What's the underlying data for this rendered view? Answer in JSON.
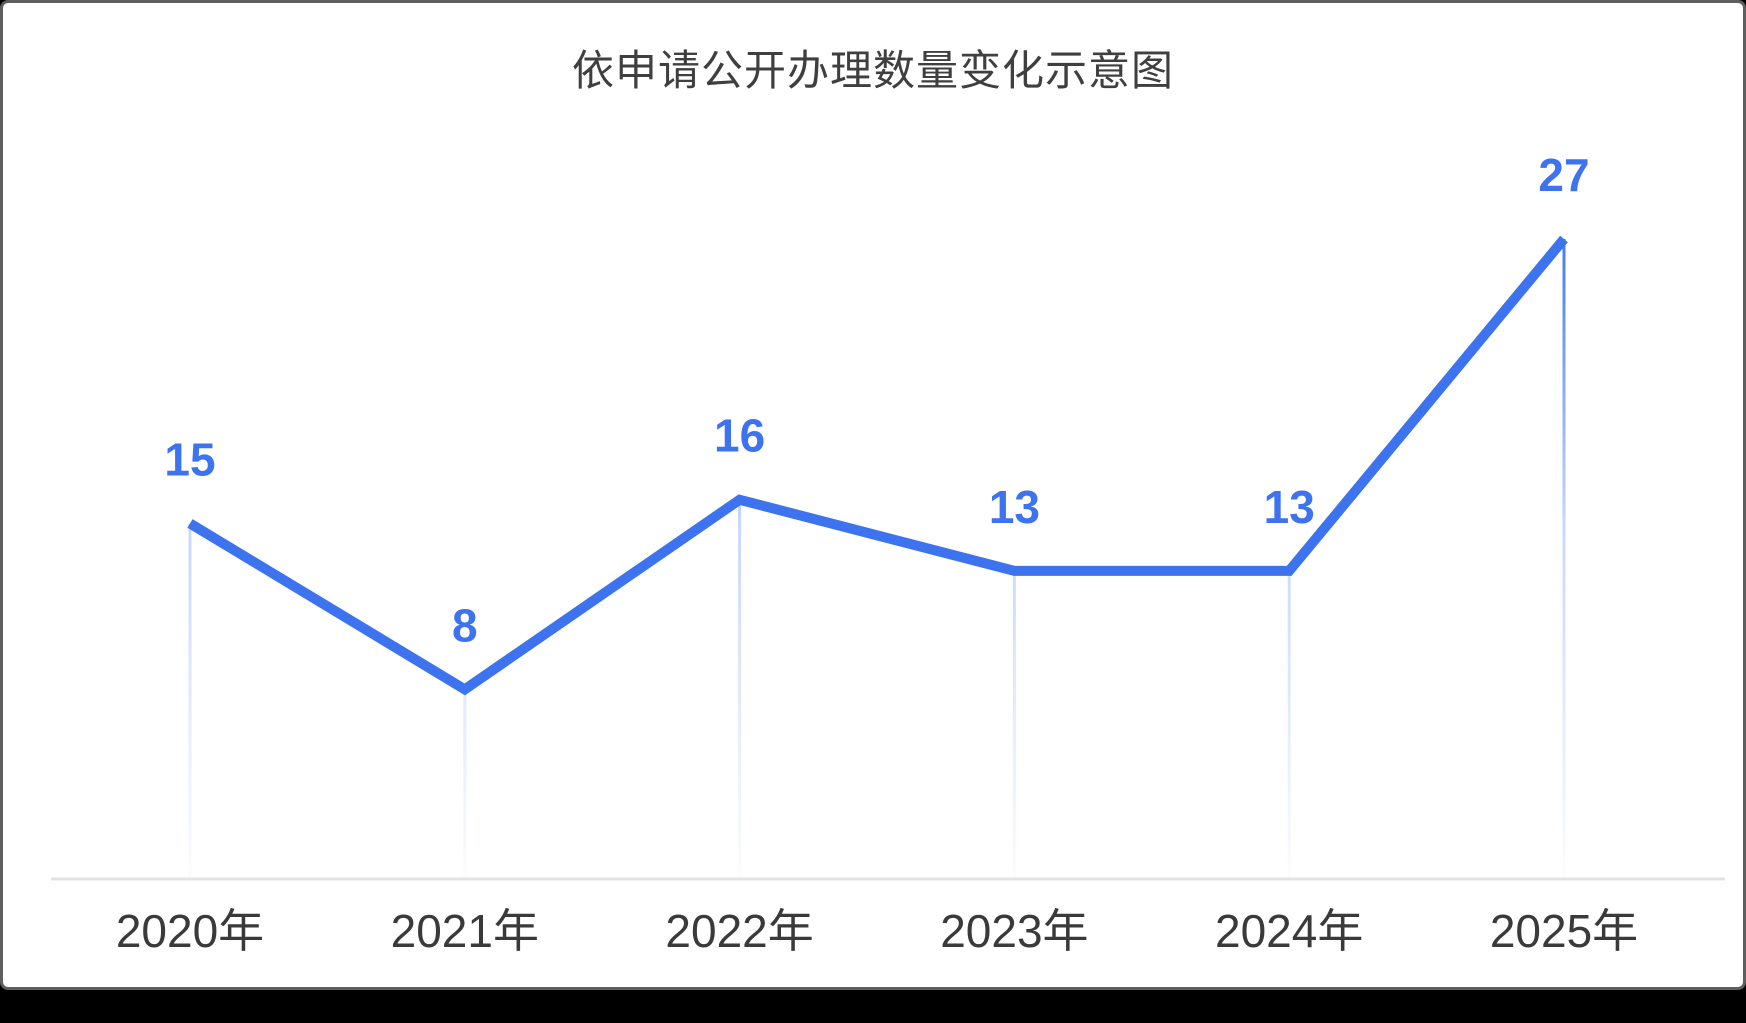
{
  "page": {
    "background": "#000000"
  },
  "card": {
    "background": "#ffffff",
    "border_color": "#5f5f5f"
  },
  "chart_data": {
    "type": "line",
    "title": "依申请公开办理数量变化示意图",
    "categories": [
      "2020年",
      "2021年",
      "2022年",
      "2023年",
      "2024年",
      "2025年"
    ],
    "values": [
      15,
      8,
      16,
      13,
      13,
      27
    ],
    "xlabel": "",
    "ylabel": "",
    "ylim": [
      0,
      27
    ],
    "grid": false,
    "legend": "none",
    "y_axis_visible": false,
    "data_labels_visible": true,
    "marker": "none",
    "colors": {
      "line": "#3d73ee",
      "data_label": "#3d73ee",
      "drop_line": "#3d73ee",
      "axis_line": "#e3e3e6",
      "title": "#3f3f3f",
      "tick_label": "#3a3a3a"
    }
  }
}
